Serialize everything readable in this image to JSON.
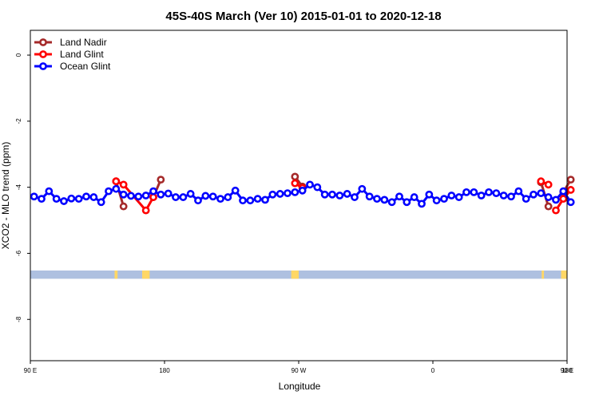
{
  "chart_data": {
    "type": "line",
    "title": "45S-40S March (Ver 10)   2015-01-01 to 2020-12-18",
    "xlabel": "Longitude",
    "ylabel": "XCO2 - MLO trend (ppm)",
    "xlim": [
      90,
      450
    ],
    "ylim": [
      -9.25,
      0.75
    ],
    "x_ticks": [
      {
        "value": 90,
        "label": "90 E"
      },
      {
        "value": 180,
        "label": "180"
      },
      {
        "value": 270,
        "label": "90 W"
      },
      {
        "value": 360,
        "label": "0"
      },
      {
        "value": 450,
        "label": "90 E"
      },
      {
        "value": 540,
        "label": "180"
      }
    ],
    "y_ticks": [
      {
        "value": 0,
        "label": "0"
      },
      {
        "value": -2,
        "label": "-2"
      },
      {
        "value": -4,
        "label": "-4"
      },
      {
        "value": -6,
        "label": "-6"
      },
      {
        "value": -8,
        "label": "-8"
      }
    ],
    "legend_position": "top-left",
    "series": [
      {
        "name": "Land Nadir",
        "color": "#a52a2a",
        "segments": [
          {
            "x": [
              147.5,
              152.5
            ],
            "y": [
              -3.82,
              -4.58
            ]
          },
          {
            "x": [
              172.5,
              177.5
            ],
            "y": [
              -4.3,
              -3.77
            ]
          },
          {
            "x": [
              267.5,
              272.5
            ],
            "y": [
              -3.68,
              -3.98
            ]
          },
          {
            "x": [
              432.5,
              437.5
            ],
            "y": [
              -3.85,
              -4.58
            ]
          },
          {
            "x": [
              447.5,
              452.5
            ],
            "y": [
              -4.15,
              -3.77
            ]
          }
        ]
      },
      {
        "name": "Land Glint",
        "color": "#ff0000",
        "segments": [
          {
            "x": [
              147.5,
              152.5,
              167.5,
              172.5
            ],
            "y": [
              -3.82,
              -3.92,
              -4.7,
              -4.3
            ]
          },
          {
            "x": [
              267.5,
              272.5
            ],
            "y": [
              -3.88,
              -4.02
            ]
          },
          {
            "x": [
              432.5,
              437.5
            ],
            "y": [
              -3.82,
              -3.92
            ]
          },
          {
            "x": [
              442.5,
              447.5,
              452.5
            ],
            "y": [
              -4.7,
              -4.35,
              -4.08
            ]
          }
        ]
      },
      {
        "name": "Ocean Glint",
        "color": "#0000ff",
        "x": [
          92.5,
          97.5,
          102.5,
          107.5,
          112.5,
          117.5,
          122.5,
          127.5,
          132.5,
          137.5,
          142.5,
          147.5,
          152.5,
          157.5,
          162.5,
          167.5,
          172.5,
          177.5,
          182.5,
          187.5,
          192.5,
          197.5,
          202.5,
          207.5,
          212.5,
          217.5,
          222.5,
          227.5,
          232.5,
          237.5,
          242.5,
          247.5,
          252.5,
          257.5,
          262.5,
          267.5,
          272.5,
          277.5,
          282.5,
          287.5,
          292.5,
          297.5,
          302.5,
          307.5,
          312.5,
          317.5,
          322.5,
          327.5,
          332.5,
          337.5,
          342.5,
          347.5,
          352.5,
          357.5,
          362.5,
          367.5,
          372.5,
          377.5,
          382.5,
          387.5,
          392.5,
          397.5,
          402.5,
          407.5,
          412.5,
          417.5,
          422.5,
          427.5,
          432.5,
          437.5,
          442.5,
          447.5,
          452.5
        ],
        "y": [
          -4.28,
          -4.35,
          -4.12,
          -4.35,
          -4.42,
          -4.34,
          -4.35,
          -4.28,
          -4.3,
          -4.45,
          -4.12,
          -4.05,
          -4.22,
          -4.26,
          -4.28,
          -4.25,
          -4.12,
          -4.22,
          -4.19,
          -4.3,
          -4.3,
          -4.2,
          -4.4,
          -4.26,
          -4.28,
          -4.35,
          -4.3,
          -4.1,
          -4.4,
          -4.4,
          -4.35,
          -4.38,
          -4.22,
          -4.2,
          -4.18,
          -4.15,
          -4.1,
          -3.92,
          -4.0,
          -4.22,
          -4.22,
          -4.25,
          -4.2,
          -4.3,
          -4.05,
          -4.28,
          -4.35,
          -4.38,
          -4.45,
          -4.28,
          -4.45,
          -4.3,
          -4.5,
          -4.22,
          -4.4,
          -4.35,
          -4.25,
          -4.3,
          -4.15,
          -4.15,
          -4.25,
          -4.15,
          -4.18,
          -4.25,
          -4.28,
          -4.12,
          -4.35,
          -4.22,
          -4.18,
          -4.3,
          -4.38,
          -4.12,
          -4.45
        ]
      }
    ],
    "band": {
      "y_range": [
        -6.52,
        -6.77
      ],
      "color": "#aec0e0",
      "highlight_color": "#ffd766",
      "highlight_x_ranges": [
        [
          146.5,
          148.5
        ],
        [
          165,
          170
        ],
        [
          265,
          270
        ],
        [
          433,
          434.5
        ],
        [
          446,
          450
        ]
      ]
    }
  }
}
